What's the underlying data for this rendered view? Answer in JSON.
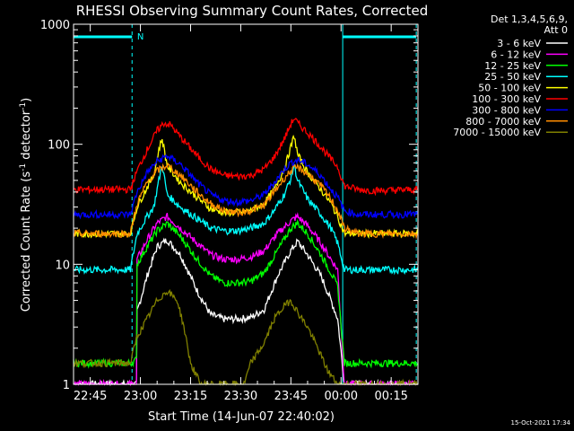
{
  "chart_data": {
    "type": "line",
    "title": "RHESSI Observing Summary Count Rates, Corrected",
    "xlabel": "Start Time (14-Jun-07 22:40:02)",
    "ylabel": "Corrected Count Rate (s",
    "ylabel_sup1": "-1",
    "ylabel_mid": " detector",
    "ylabel_sup2": "-1",
    "ylabel_end": ")",
    "yscale": "log",
    "ylim": [
      1,
      1000
    ],
    "xlim_minutes": [
      -5,
      98
    ],
    "x_ticks": [
      {
        "t": 0,
        "label": "22:45"
      },
      {
        "t": 15,
        "label": "23:00"
      },
      {
        "t": 30,
        "label": "23:15"
      },
      {
        "t": 45,
        "label": "23:30"
      },
      {
        "t": 60,
        "label": "23:45"
      },
      {
        "t": 75,
        "label": "00:00"
      },
      {
        "t": 90,
        "label": "00:15"
      }
    ],
    "y_ticks": [
      {
        "v": 1,
        "label": "1"
      },
      {
        "v": 10,
        "label": "10"
      },
      {
        "v": 100,
        "label": "100"
      },
      {
        "v": 1000,
        "label": "1000"
      }
    ],
    "legend_header": [
      "Det 1,3,4,5,6,9,",
      "Att 0"
    ],
    "timestamp": "15-Oct-2021 17:34",
    "flag_label": "N",
    "series": [
      {
        "name": "3 - 6 keV",
        "color": "#ffffff",
        "points": [
          [
            -5,
            1.0
          ],
          [
            12,
            1.0
          ],
          [
            13.8,
            1.0
          ],
          [
            14,
            4.0
          ],
          [
            17,
            8.0
          ],
          [
            20,
            14.0
          ],
          [
            23,
            16.0
          ],
          [
            27,
            12.0
          ],
          [
            32,
            6.0
          ],
          [
            36,
            3.8
          ],
          [
            40,
            3.5
          ],
          [
            44,
            3.5
          ],
          [
            48,
            3.6
          ],
          [
            52,
            4.2
          ],
          [
            56,
            8.0
          ],
          [
            60,
            13.0
          ],
          [
            62,
            15.5
          ],
          [
            65,
            12.0
          ],
          [
            69,
            8.0
          ],
          [
            72,
            5.0
          ],
          [
            74,
            3.5
          ],
          [
            76,
            1.0
          ],
          [
            98,
            1.0
          ]
        ]
      },
      {
        "name": "6 - 12 keV",
        "color": "#ff00ff",
        "points": [
          [
            -5,
            1.0
          ],
          [
            12,
            1.0
          ],
          [
            13.8,
            1.0
          ],
          [
            14,
            11.0
          ],
          [
            17,
            16.0
          ],
          [
            20,
            22.0
          ],
          [
            23,
            25.0
          ],
          [
            27,
            20.0
          ],
          [
            32,
            15.0
          ],
          [
            36,
            12.0
          ],
          [
            40,
            11.0
          ],
          [
            44,
            11.0
          ],
          [
            48,
            11.5
          ],
          [
            52,
            13.0
          ],
          [
            56,
            18.0
          ],
          [
            60,
            23.0
          ],
          [
            62,
            25.0
          ],
          [
            65,
            21.0
          ],
          [
            69,
            15.0
          ],
          [
            72,
            11.0
          ],
          [
            74,
            9.0
          ],
          [
            76,
            1.0
          ],
          [
            98,
            1.0
          ]
        ]
      },
      {
        "name": "12 - 25 keV",
        "color": "#00ff00",
        "points": [
          [
            -5,
            1.5
          ],
          [
            12,
            1.5
          ],
          [
            13.8,
            1.6
          ],
          [
            14,
            10.0
          ],
          [
            17,
            14.0
          ],
          [
            20,
            19.0
          ],
          [
            23,
            22.0
          ],
          [
            27,
            17.0
          ],
          [
            32,
            11.0
          ],
          [
            36,
            8.0
          ],
          [
            40,
            7.0
          ],
          [
            44,
            7.0
          ],
          [
            48,
            7.2
          ],
          [
            52,
            8.5
          ],
          [
            56,
            13.0
          ],
          [
            60,
            20.0
          ],
          [
            62,
            22.0
          ],
          [
            65,
            18.0
          ],
          [
            69,
            12.0
          ],
          [
            72,
            8.5
          ],
          [
            74,
            6.5
          ],
          [
            76,
            1.5
          ],
          [
            98,
            1.5
          ]
        ]
      },
      {
        "name": "25 - 50 keV",
        "color": "#00ffff",
        "points": [
          [
            -5,
            9.0
          ],
          [
            12,
            9.0
          ],
          [
            14,
            18.0
          ],
          [
            17,
            25.0
          ],
          [
            19,
            30.0
          ],
          [
            20.5,
            50.0
          ],
          [
            21.5,
            68.0
          ],
          [
            23,
            38.0
          ],
          [
            27,
            30.0
          ],
          [
            32,
            24.0
          ],
          [
            36,
            20.0
          ],
          [
            40,
            19.0
          ],
          [
            44,
            19.0
          ],
          [
            48,
            20.0
          ],
          [
            52,
            22.0
          ],
          [
            55,
            28.0
          ],
          [
            58,
            38.0
          ],
          [
            60,
            52.0
          ],
          [
            61,
            68.0
          ],
          [
            62,
            50.0
          ],
          [
            65,
            35.0
          ],
          [
            69,
            26.0
          ],
          [
            72,
            20.0
          ],
          [
            74,
            15.0
          ],
          [
            76,
            9.0
          ],
          [
            98,
            9.0
          ]
        ]
      },
      {
        "name": "50 - 100 keV",
        "color": "#ffff00",
        "points": [
          [
            -5,
            18.0
          ],
          [
            12,
            18.0
          ],
          [
            14,
            30.0
          ],
          [
            17,
            44.0
          ],
          [
            19,
            55.0
          ],
          [
            20.5,
            90.0
          ],
          [
            21.5,
            112.0
          ],
          [
            23,
            66.0
          ],
          [
            27,
            48.0
          ],
          [
            32,
            36.0
          ],
          [
            36,
            29.0
          ],
          [
            40,
            27.0
          ],
          [
            44,
            27.0
          ],
          [
            48,
            28.0
          ],
          [
            52,
            32.0
          ],
          [
            55,
            42.0
          ],
          [
            58,
            62.0
          ],
          [
            60,
            95.0
          ],
          [
            61,
            118.0
          ],
          [
            62,
            82.0
          ],
          [
            65,
            58.0
          ],
          [
            69,
            42.0
          ],
          [
            72,
            32.0
          ],
          [
            74,
            25.0
          ],
          [
            76,
            18.0
          ],
          [
            98,
            18.0
          ]
        ]
      },
      {
        "name": "100 - 300 keV",
        "color": "#ff0000",
        "points": [
          [
            -5,
            42.0
          ],
          [
            12,
            42.0
          ],
          [
            14,
            60.0
          ],
          [
            17,
            90.0
          ],
          [
            20,
            130.0
          ],
          [
            22,
            150.0
          ],
          [
            24,
            145.0
          ],
          [
            27,
            115.0
          ],
          [
            32,
            80.0
          ],
          [
            36,
            62.0
          ],
          [
            40,
            55.0
          ],
          [
            44,
            54.0
          ],
          [
            48,
            55.0
          ],
          [
            52,
            62.0
          ],
          [
            55,
            78.0
          ],
          [
            58,
            110.0
          ],
          [
            60,
            148.0
          ],
          [
            61,
            165.0
          ],
          [
            62,
            150.0
          ],
          [
            65,
            125.0
          ],
          [
            69,
            95.0
          ],
          [
            72,
            75.0
          ],
          [
            74,
            65.0
          ],
          [
            76,
            45.0
          ],
          [
            80,
            42.0
          ],
          [
            85,
            41.0
          ],
          [
            98,
            42.0
          ]
        ]
      },
      {
        "name": "300 - 800 keV",
        "color": "#0000ff",
        "points": [
          [
            -5,
            26.0
          ],
          [
            12,
            26.0
          ],
          [
            14,
            40.0
          ],
          [
            17,
            58.0
          ],
          [
            20,
            72.0
          ],
          [
            23,
            80.0
          ],
          [
            27,
            68.0
          ],
          [
            32,
            48.0
          ],
          [
            36,
            38.0
          ],
          [
            40,
            34.0
          ],
          [
            44,
            33.0
          ],
          [
            48,
            34.0
          ],
          [
            52,
            38.0
          ],
          [
            55,
            48.0
          ],
          [
            58,
            62.0
          ],
          [
            60,
            70.0
          ],
          [
            62,
            74.0
          ],
          [
            65,
            68.0
          ],
          [
            69,
            55.0
          ],
          [
            72,
            42.0
          ],
          [
            74,
            36.0
          ],
          [
            76,
            28.0
          ],
          [
            80,
            26.0
          ],
          [
            98,
            26.0
          ]
        ]
      },
      {
        "name": "800 - 7000 keV",
        "color": "#ff8c00",
        "points": [
          [
            -5,
            18.0
          ],
          [
            12,
            18.0
          ],
          [
            14,
            32.0
          ],
          [
            17,
            48.0
          ],
          [
            20,
            60.0
          ],
          [
            23,
            67.0
          ],
          [
            27,
            55.0
          ],
          [
            32,
            40.0
          ],
          [
            36,
            32.0
          ],
          [
            40,
            28.0
          ],
          [
            44,
            27.0
          ],
          [
            48,
            28.0
          ],
          [
            52,
            31.0
          ],
          [
            55,
            40.0
          ],
          [
            58,
            52.0
          ],
          [
            60,
            60.0
          ],
          [
            62,
            64.0
          ],
          [
            65,
            57.0
          ],
          [
            69,
            45.0
          ],
          [
            72,
            35.0
          ],
          [
            74,
            28.0
          ],
          [
            76,
            20.0
          ],
          [
            80,
            18.0
          ],
          [
            98,
            18.0
          ]
        ]
      },
      {
        "name": "7000 - 15000 keV",
        "color": "#808000",
        "points": [
          [
            -5,
            1.5
          ],
          [
            12,
            1.5
          ],
          [
            14,
            2.5
          ],
          [
            17,
            3.5
          ],
          [
            20,
            5.0
          ],
          [
            23,
            6.0
          ],
          [
            26,
            5.0
          ],
          [
            28,
            3.0
          ],
          [
            30,
            1.5
          ],
          [
            33,
            1.0
          ],
          [
            40,
            1.0
          ],
          [
            46,
            1.0
          ],
          [
            48,
            1.5
          ],
          [
            52,
            2.2
          ],
          [
            55,
            3.5
          ],
          [
            58,
            4.5
          ],
          [
            60,
            5.0
          ],
          [
            62,
            4.0
          ],
          [
            65,
            3.0
          ],
          [
            68,
            2.0
          ],
          [
            71,
            1.3
          ],
          [
            74,
            1.0
          ],
          [
            98,
            1.0
          ]
        ]
      }
    ]
  }
}
